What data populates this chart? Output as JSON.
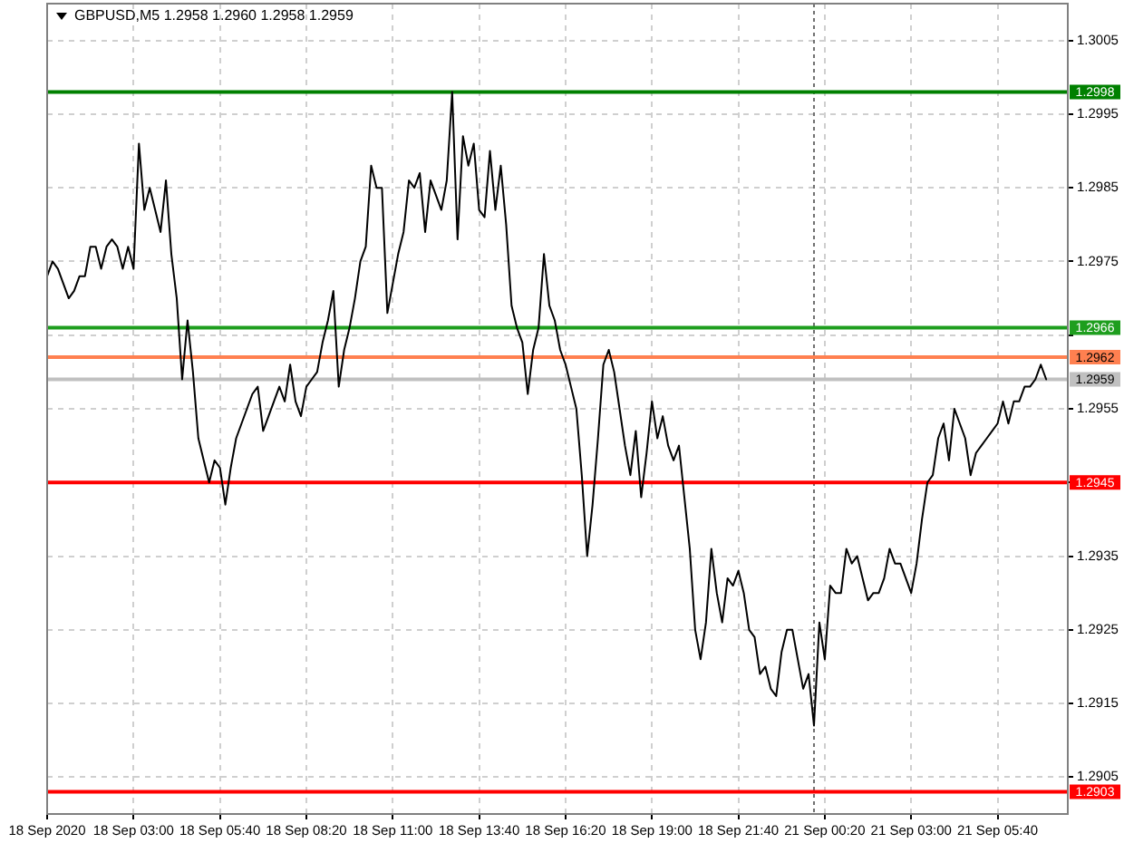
{
  "chart_data": {
    "type": "line",
    "title": "GBPUSD,M5 1.2958 1.2960 1.2958 1.2959",
    "categories": [
      "18 Sep 2020",
      null,
      null,
      null,
      null,
      null,
      null,
      null,
      null,
      null,
      null,
      null,
      null,
      null,
      null,
      null,
      "18 Sep 03:00",
      null,
      null,
      null,
      null,
      null,
      null,
      null,
      null,
      null,
      null,
      null,
      null,
      null,
      null,
      null,
      "18 Sep 05:40",
      null,
      null,
      null,
      null,
      null,
      null,
      null,
      null,
      null,
      null,
      null,
      null,
      null,
      null,
      null,
      "18 Sep 08:20",
      null,
      null,
      null,
      null,
      null,
      null,
      null,
      null,
      null,
      null,
      null,
      null,
      null,
      null,
      null,
      "18 Sep 11:00",
      null,
      null,
      null,
      null,
      null,
      null,
      null,
      null,
      null,
      null,
      null,
      null,
      null,
      null,
      null,
      "18 Sep 13:40",
      null,
      null,
      null,
      null,
      null,
      null,
      null,
      null,
      null,
      null,
      null,
      null,
      null,
      null,
      null,
      "18 Sep 16:20",
      null,
      null,
      null,
      null,
      null,
      null,
      null,
      null,
      null,
      null,
      null,
      null,
      null,
      null,
      null,
      "18 Sep 19:00",
      null,
      null,
      null,
      null,
      null,
      null,
      null,
      null,
      null,
      null,
      null,
      null,
      null,
      null,
      null,
      "18 Sep 21:40",
      null,
      null,
      null,
      null,
      null,
      null,
      null,
      null,
      null,
      null,
      null,
      null,
      null,
      null,
      null,
      "21 Sep 00:20",
      null,
      null,
      null,
      null,
      null,
      null,
      null,
      null,
      null,
      null,
      null,
      null,
      null,
      null,
      null,
      "21 Sep 03:00",
      null,
      null,
      null,
      null,
      null,
      null,
      null,
      null,
      null,
      null,
      null,
      null,
      null,
      null,
      null,
      "21 Sep 05:40",
      null,
      null,
      null,
      null,
      null,
      null,
      null,
      null,
      null,
      null,
      null,
      null,
      null
    ],
    "values": [
      1.2973,
      1.2975,
      1.2974,
      1.2972,
      1.297,
      1.2971,
      1.2973,
      1.2973,
      1.2977,
      1.2977,
      1.2974,
      1.2977,
      1.2978,
      1.2977,
      1.2974,
      1.2977,
      1.2974,
      1.2991,
      1.2982,
      1.2985,
      1.2982,
      1.2979,
      1.2986,
      1.2976,
      1.297,
      1.2959,
      1.2967,
      1.296,
      1.2951,
      1.2948,
      1.2945,
      1.2948,
      1.2947,
      1.2942,
      1.2947,
      1.2951,
      1.2953,
      1.2955,
      1.2957,
      1.2958,
      1.2952,
      1.2954,
      1.2956,
      1.2958,
      1.2956,
      1.2961,
      1.2956,
      1.2954,
      1.2958,
      1.2959,
      1.296,
      1.2964,
      1.2967,
      1.2971,
      1.2958,
      1.2963,
      1.2966,
      1.297,
      1.2975,
      1.2977,
      1.2988,
      1.2985,
      1.2985,
      1.2968,
      1.2972,
      1.2976,
      1.2979,
      1.2986,
      1.2985,
      1.2987,
      1.2979,
      1.2986,
      1.2984,
      1.2982,
      1.2986,
      1.2998,
      1.2978,
      1.2992,
      1.2988,
      1.2991,
      1.2982,
      1.2981,
      1.299,
      1.2982,
      1.2988,
      1.298,
      1.2969,
      1.2966,
      1.2964,
      1.2957,
      1.2963,
      1.2966,
      1.2976,
      1.2969,
      1.2967,
      1.2963,
      1.2961,
      1.2958,
      1.2955,
      1.2946,
      1.2935,
      1.2942,
      1.2951,
      1.2961,
      1.2963,
      1.296,
      1.2955,
      1.295,
      1.2946,
      1.2952,
      1.2943,
      1.2949,
      1.2956,
      1.2951,
      1.2954,
      1.295,
      1.2948,
      1.295,
      1.2943,
      1.2936,
      1.2925,
      1.2921,
      1.2926,
      1.2936,
      1.293,
      1.2926,
      1.2932,
      1.2931,
      1.2933,
      1.293,
      1.2925,
      1.2924,
      1.2919,
      1.292,
      1.2917,
      1.2916,
      1.2922,
      1.2925,
      1.2925,
      1.2921,
      1.2917,
      1.2919,
      1.2912,
      1.2926,
      1.2921,
      1.2931,
      1.293,
      1.293,
      1.2936,
      1.2934,
      1.2935,
      1.2932,
      1.2929,
      1.293,
      1.293,
      1.2932,
      1.2936,
      1.2934,
      1.2934,
      1.2932,
      1.293,
      1.2934,
      1.294,
      1.2945,
      1.2946,
      1.2951,
      1.2953,
      1.2948,
      1.2955,
      1.2953,
      1.2951,
      1.2946,
      1.2949,
      1.295,
      1.2951,
      1.2952,
      1.2953,
      1.2956,
      1.2953,
      1.2956,
      1.2956,
      1.2958,
      1.2958,
      1.2959,
      1.2961,
      1.2959,
      null,
      null,
      null,
      null
    ],
    "color": "#000000",
    "marker": "none",
    "ylim": [
      1.29,
      1.301
    ],
    "yticks": [
      1.2905,
      1.2915,
      1.2925,
      1.2935,
      {
        "value": 1.2945,
        "label": null
      },
      1.2955,
      {
        "value": 1.2965,
        "label": null
      },
      1.2975,
      1.2985,
      1.2995,
      1.3005
    ],
    "grid": true,
    "ref_lines": [
      {
        "axis": "y",
        "value": 1.2998,
        "label": "1.2998",
        "color": "#008000"
      },
      {
        "axis": "y",
        "value": 1.2966,
        "label": "1.2966",
        "color": "#1e9e1e"
      },
      {
        "axis": "y",
        "value": 1.2962,
        "label": "1.2962",
        "color": "#ff8050"
      },
      {
        "axis": "y",
        "value": 1.2959,
        "label": "1.2959",
        "color": "#c0c0c0"
      },
      {
        "axis": "y",
        "value": 1.2945,
        "label": "1.2945",
        "color": "#ff0000"
      },
      {
        "axis": "y",
        "value": 1.2903,
        "label": "1.2903",
        "color": "#ff0000"
      }
    ]
  }
}
